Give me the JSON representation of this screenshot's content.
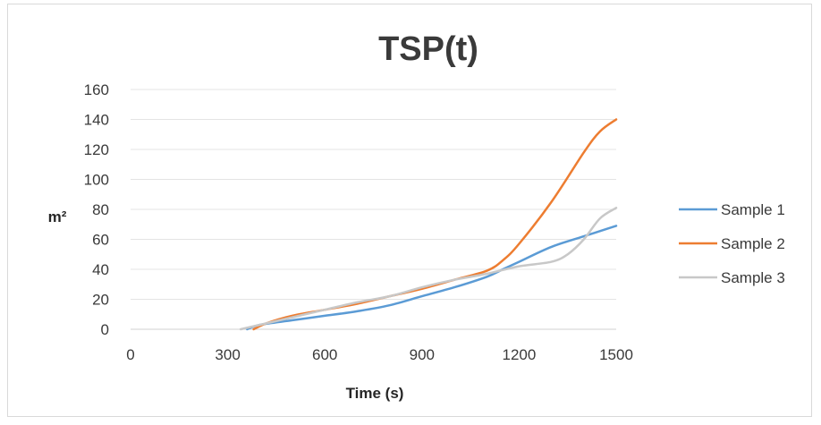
{
  "chart_data": {
    "type": "line",
    "title": "TSP(t)",
    "xlabel": "Time (s)",
    "ylabel": "m²",
    "xlim": [
      0,
      1500
    ],
    "ylim": [
      0,
      160
    ],
    "x_ticks": [
      "0",
      "300",
      "600",
      "900",
      "1200",
      "1500"
    ],
    "y_ticks": [
      "0",
      "20",
      "40",
      "60",
      "80",
      "100",
      "120",
      "140",
      "160"
    ],
    "grid": true,
    "legend_position": "right",
    "series": [
      {
        "name": "Sample 1",
        "color": "#5b9bd5",
        "x": [
          360,
          400,
          500,
          600,
          700,
          800,
          900,
          1000,
          1100,
          1150,
          1200,
          1300,
          1400,
          1500
        ],
        "y": [
          0,
          3,
          6,
          9,
          12,
          16,
          22,
          28,
          35,
          40,
          45,
          55,
          62,
          69
        ]
      },
      {
        "name": "Sample 2",
        "color": "#ed7d31",
        "x": [
          380,
          420,
          500,
          600,
          700,
          800,
          900,
          1000,
          1100,
          1150,
          1200,
          1300,
          1400,
          1450,
          1500
        ],
        "y": [
          0,
          4,
          9,
          13,
          17,
          22,
          27,
          33,
          39,
          46,
          57,
          85,
          118,
          132,
          140
        ]
      },
      {
        "name": "Sample 3",
        "color": "#c8c8c8",
        "x": [
          340,
          400,
          500,
          600,
          700,
          800,
          900,
          1000,
          1100,
          1200,
          1300,
          1350,
          1400,
          1450,
          1500
        ],
        "y": [
          0,
          3,
          8,
          13,
          18,
          22,
          28,
          33,
          37,
          42,
          45,
          50,
          60,
          74,
          81
        ]
      }
    ]
  }
}
